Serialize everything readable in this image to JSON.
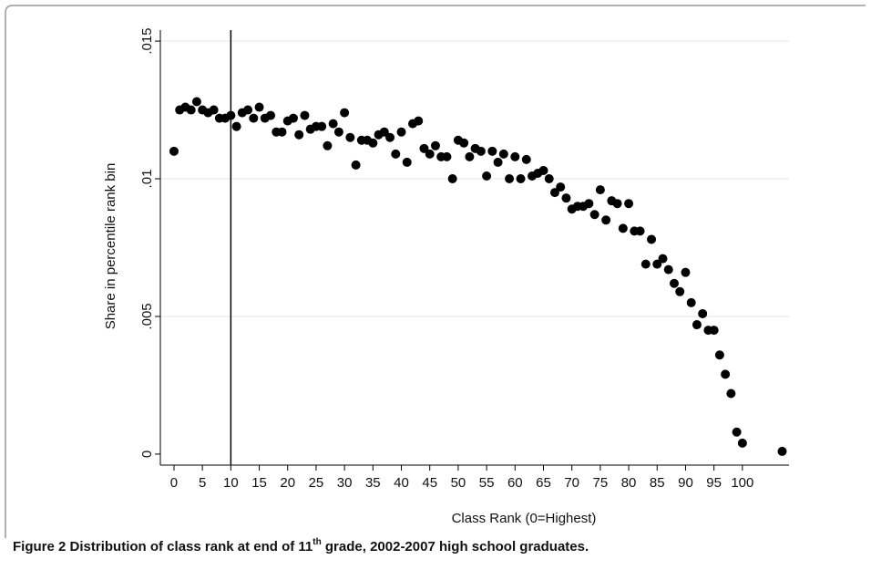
{
  "chart_data": {
    "type": "scatter",
    "y_label": "Share in percentile rank bin",
    "x_label": "Class Rank (0=Highest)",
    "x": [
      0,
      1,
      2,
      3,
      4,
      5,
      6,
      7,
      8,
      9,
      10,
      11,
      12,
      13,
      14,
      15,
      16,
      17,
      18,
      19,
      20,
      21,
      22,
      23,
      24,
      25,
      26,
      27,
      28,
      29,
      30,
      31,
      32,
      33,
      34,
      35,
      36,
      37,
      38,
      39,
      40,
      41,
      42,
      43,
      44,
      45,
      46,
      47,
      48,
      49,
      50,
      51,
      52,
      53,
      54,
      55,
      56,
      57,
      58,
      59,
      60,
      61,
      62,
      63,
      64,
      65,
      66,
      67,
      68,
      69,
      70,
      71,
      72,
      73,
      74,
      75,
      76,
      77,
      78,
      79,
      80,
      81,
      82,
      83,
      84,
      85,
      86,
      87,
      88,
      89,
      90,
      91,
      92,
      93,
      94,
      95,
      96,
      97,
      98,
      99,
      100,
      107
    ],
    "values": [
      0.011,
      0.0125,
      0.0126,
      0.0125,
      0.0128,
      0.0125,
      0.0124,
      0.0125,
      0.0122,
      0.0122,
      0.0123,
      0.0119,
      0.0124,
      0.0125,
      0.0122,
      0.0126,
      0.0122,
      0.0123,
      0.0117,
      0.0117,
      0.0121,
      0.0122,
      0.0116,
      0.0123,
      0.0118,
      0.0119,
      0.0119,
      0.0112,
      0.012,
      0.0117,
      0.0124,
      0.0115,
      0.0105,
      0.0114,
      0.0114,
      0.0113,
      0.0116,
      0.0117,
      0.0115,
      0.0109,
      0.0117,
      0.0106,
      0.012,
      0.0121,
      0.0111,
      0.0109,
      0.0112,
      0.0108,
      0.0108,
      0.01,
      0.0114,
      0.0113,
      0.0108,
      0.0111,
      0.011,
      0.0101,
      0.011,
      0.0106,
      0.0109,
      0.01,
      0.0108,
      0.01,
      0.0107,
      0.0101,
      0.0102,
      0.0103,
      0.01,
      0.0095,
      0.0097,
      0.0093,
      0.0089,
      0.009,
      0.009,
      0.0091,
      0.0087,
      0.0096,
      0.0085,
      0.0092,
      0.0091,
      0.0082,
      0.0091,
      0.0081,
      0.0081,
      0.0069,
      0.0078,
      0.0069,
      0.0071,
      0.0067,
      0.0062,
      0.0059,
      0.0066,
      0.0055,
      0.0047,
      0.0051,
      0.0045,
      0.0045,
      0.0036,
      0.0029,
      0.0022,
      0.0008,
      0.0004,
      0.0001
    ],
    "color": "#000000",
    "reference_line_x": 10,
    "xlim": [
      -2.4,
      108.2
    ],
    "ylim": [
      -0.0004,
      0.0154
    ],
    "xticks": [
      0,
      5,
      10,
      15,
      20,
      25,
      30,
      35,
      40,
      45,
      50,
      55,
      60,
      65,
      70,
      75,
      80,
      85,
      90,
      95,
      100
    ],
    "yticks": [
      0,
      {
        "value": 0.005,
        "label": ".005"
      },
      {
        "value": 0.01,
        "label": ".01"
      },
      {
        "value": 0.015,
        "label": ".015"
      }
    ],
    "grid": true
  },
  "caption": {
    "label": "Figure 2",
    "text_before": "Distribution of class rank at end of 11",
    "superscript": "th",
    "text_after": " grade, 2002-2007 high school graduates."
  }
}
